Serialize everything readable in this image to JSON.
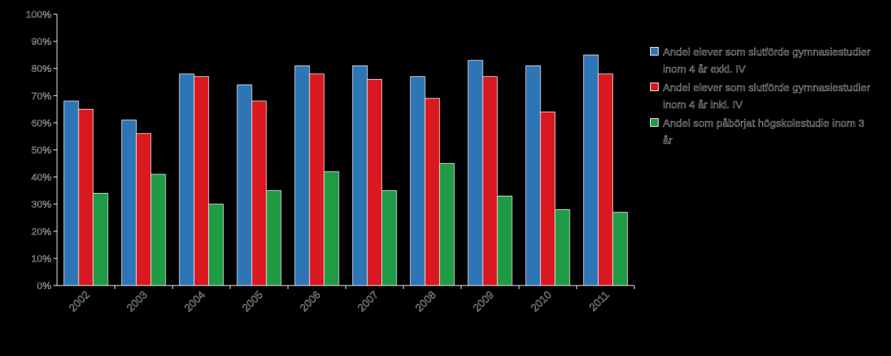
{
  "chart_data": {
    "type": "bar",
    "categories": [
      "2002",
      "2003",
      "2004",
      "2005",
      "2006",
      "2007",
      "2008",
      "2009",
      "2010",
      "2011"
    ],
    "series": [
      {
        "name": "Andel elever som slutförde gymnasiestudier inom 4 år exkl. IV",
        "color": "#2e75b6",
        "values": [
          68,
          61,
          78,
          74,
          81,
          81,
          77,
          83,
          81,
          85
        ]
      },
      {
        "name": "Andel elever som slutförde gymnasiestudier inom 4 år inkl. IV",
        "color": "#d9181f",
        "values": [
          65,
          56,
          77,
          68,
          78,
          76,
          69,
          77,
          64,
          78
        ]
      },
      {
        "name": "Andel som påbörjat högskolestudie inom 3 år",
        "color": "#1f9a45",
        "values": [
          34,
          41,
          30,
          35,
          42,
          35,
          45,
          33,
          28,
          27
        ]
      }
    ],
    "ylim": [
      0,
      100
    ],
    "yticks": [
      "0%",
      "10%",
      "20%",
      "30%",
      "40%",
      "50%",
      "60%",
      "70%",
      "80%",
      "90%",
      "100%"
    ],
    "legend_position": "right",
    "grid": false
  }
}
